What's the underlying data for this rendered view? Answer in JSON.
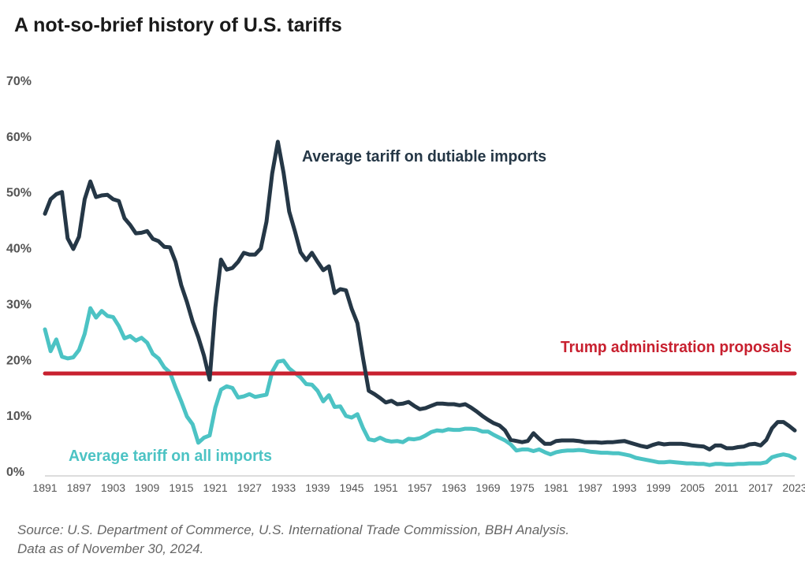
{
  "chart_data": {
    "type": "line",
    "title": "A not-so-brief history of U.S. tariffs",
    "xlabel": "",
    "ylabel": "",
    "x_range": [
      1891,
      2023
    ],
    "ylim": [
      0,
      70
    ],
    "y_ticks": [
      "0%",
      "10%",
      "20%",
      "30%",
      "40%",
      "50%",
      "60%",
      "70%"
    ],
    "x_ticks": [
      "1891",
      "1897",
      "1903",
      "1909",
      "1915",
      "1921",
      "1927",
      "1933",
      "1939",
      "1945",
      "1951",
      "1957",
      "1963",
      "1969",
      "1975",
      "1981",
      "1987",
      "1993",
      "1999",
      "2005",
      "2011",
      "2017",
      "2023"
    ],
    "grid": false,
    "legend": "none (direct labels)",
    "series": [
      {
        "name": "Average tariff on dutiable imports",
        "color": "#253746",
        "start_year": 1891,
        "values": [
          46.1,
          48.7,
          49.6,
          50.0,
          41.7,
          39.8,
          42.0,
          48.7,
          51.9,
          49.1,
          49.4,
          49.5,
          48.7,
          48.4,
          45.3,
          44.1,
          42.6,
          42.7,
          43.0,
          41.6,
          41.2,
          40.2,
          40.1,
          37.5,
          33.3,
          30.3,
          26.8,
          24.0,
          20.7,
          16.4,
          29.3,
          37.9,
          36.1,
          36.4,
          37.5,
          39.1,
          38.8,
          38.8,
          39.9,
          44.7,
          53.3,
          59.0,
          53.5,
          46.5,
          43.0,
          39.2,
          37.8,
          39.1,
          37.5,
          36.0,
          36.7,
          31.9,
          32.6,
          32.4,
          29.1,
          26.5,
          20.2,
          14.4,
          13.8,
          13.1,
          12.3,
          12.6,
          12.0,
          12.1,
          12.4,
          11.7,
          11.1,
          11.3,
          11.7,
          12.1,
          12.1,
          12.0,
          12.0,
          11.8,
          12.0,
          11.4,
          10.7,
          9.9,
          9.2,
          8.6,
          8.2,
          7.3,
          5.6,
          5.4,
          5.2,
          5.4,
          6.8,
          5.8,
          4.9,
          4.9,
          5.4,
          5.5,
          5.5,
          5.5,
          5.4,
          5.2,
          5.2,
          5.2,
          5.1,
          5.2,
          5.2,
          5.3,
          5.4,
          5.1,
          4.8,
          4.5,
          4.3,
          4.7,
          5.0,
          4.8,
          4.9,
          4.9,
          4.9,
          4.8,
          4.6,
          4.5,
          4.4,
          3.9,
          4.6,
          4.6,
          4.1,
          4.1,
          4.3,
          4.4,
          4.8,
          4.9,
          4.6,
          5.6,
          7.7,
          8.8,
          8.8,
          8.1,
          7.3
        ]
      },
      {
        "name": "Average tariff on all imports",
        "color": "#4cc3c4",
        "start_year": 1891,
        "values": [
          25.4,
          21.5,
          23.6,
          20.5,
          20.2,
          20.4,
          21.7,
          24.6,
          29.2,
          27.5,
          28.7,
          27.8,
          27.6,
          26.0,
          23.8,
          24.2,
          23.4,
          23.9,
          23.0,
          21.0,
          20.2,
          18.6,
          17.7,
          15.0,
          12.5,
          9.8,
          8.4,
          5.1,
          6.0,
          6.4,
          11.4,
          14.6,
          15.2,
          14.9,
          13.2,
          13.4,
          13.8,
          13.3,
          13.5,
          13.7,
          17.8,
          19.6,
          19.8,
          18.4,
          17.6,
          16.8,
          15.6,
          15.5,
          14.4,
          12.5,
          13.6,
          11.5,
          11.6,
          9.9,
          9.6,
          10.2,
          7.7,
          5.7,
          5.5,
          6.0,
          5.5,
          5.3,
          5.4,
          5.2,
          5.8,
          5.7,
          5.9,
          6.4,
          7.0,
          7.3,
          7.2,
          7.5,
          7.4,
          7.4,
          7.6,
          7.6,
          7.5,
          7.1,
          7.1,
          6.5,
          6.0,
          5.5,
          4.8,
          3.7,
          3.9,
          3.9,
          3.6,
          3.9,
          3.4,
          3.0,
          3.4,
          3.6,
          3.7,
          3.7,
          3.8,
          3.7,
          3.5,
          3.4,
          3.3,
          3.3,
          3.2,
          3.2,
          3.0,
          2.8,
          2.4,
          2.2,
          2.0,
          1.8,
          1.6,
          1.6,
          1.7,
          1.6,
          1.5,
          1.4,
          1.4,
          1.3,
          1.3,
          1.1,
          1.3,
          1.3,
          1.2,
          1.2,
          1.3,
          1.3,
          1.4,
          1.4,
          1.4,
          1.6,
          2.5,
          2.8,
          3.0,
          2.8,
          2.3
        ]
      },
      {
        "name": "Trump administration proposals",
        "color": "#c8202f",
        "constant": 17.5
      }
    ],
    "annotations": {
      "dutiable_label": "Average tariff on dutiable imports",
      "all_label": "Average tariff on all imports",
      "trump_label": "Trump administration proposals"
    }
  },
  "source": {
    "line1": "Source: U.S. Department of Commerce, U.S. International Trade Commission, BBH Analysis.",
    "line2": "Data as of November 30, 2024."
  }
}
